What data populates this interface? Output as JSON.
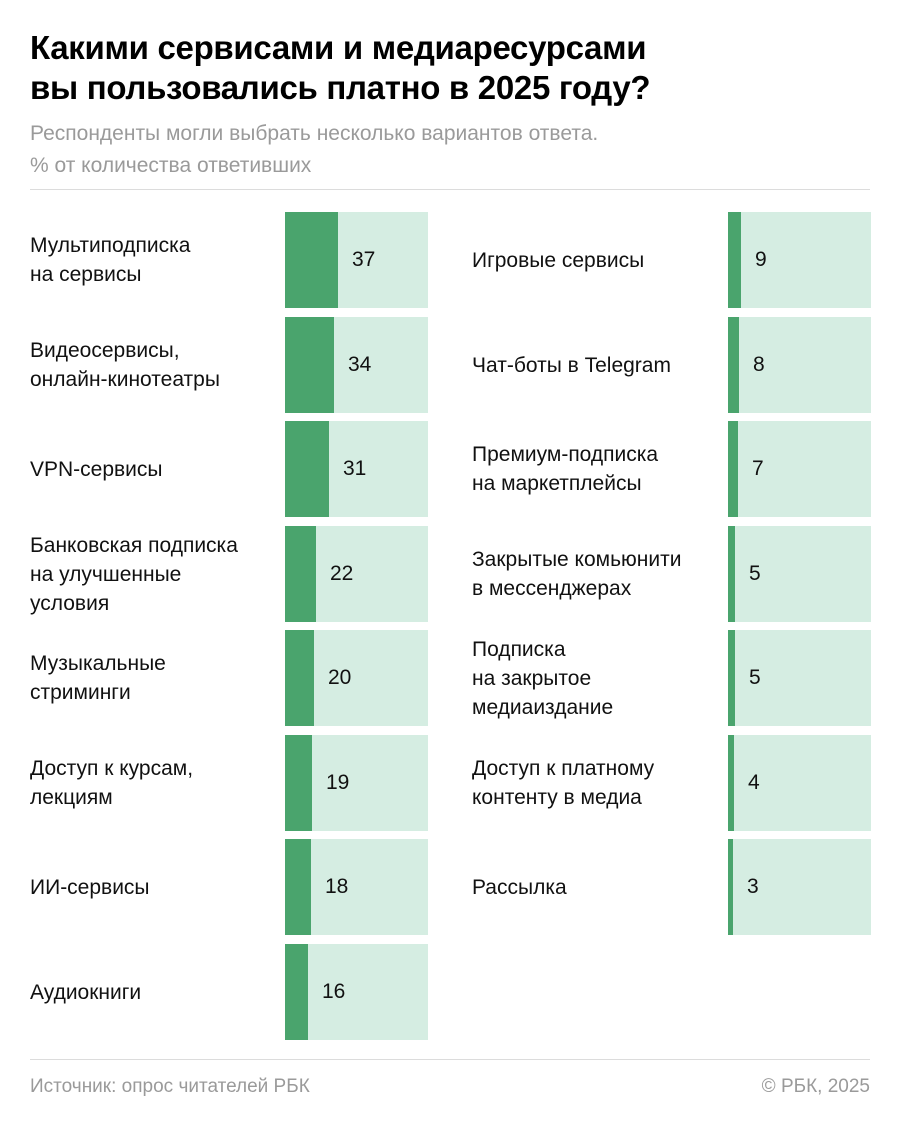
{
  "header": {
    "title": "Какими сервисами и медиаресурсами\nвы пользовались платно в 2025 году?",
    "subtitle": "Респонденты могли выбрать несколько вариантов ответа.\n% от количества ответивших"
  },
  "footer": {
    "source": "Источник: опрос читателей РБК",
    "copyright": "© РБК, 2025"
  },
  "colors": {
    "bar_fill": "#4aa46d",
    "bar_background": "#d5ede2",
    "muted_text": "#9a9a9a"
  },
  "chart_data": {
    "type": "bar",
    "orientation": "horizontal",
    "title": "Какими сервисами и медиаресурсами вы пользовались платно в 2025 году?",
    "subtitle": "Респонденты могли выбрать несколько вариантов ответа. % от количества ответивших",
    "unit": "%",
    "grid": false,
    "legend": "none",
    "columns": [
      {
        "categories": [
          "Мультиподписка\nна сервисы",
          "Видеосервисы,\nонлайн-кинотеатры",
          "VPN-сервисы",
          "Банковская подписка\nна улучшенные\nусловия",
          "Музыкальные\nстриминги",
          "Доступ к курсам,\nлекциям",
          "ИИ-сервисы",
          "Аудиокниги"
        ],
        "values": [
          37,
          34,
          31,
          22,
          20,
          19,
          18,
          16
        ]
      },
      {
        "categories": [
          "Игровые сервисы",
          "Чат-боты в Telegram",
          "Премиум-подписка\nна маркетплейсы",
          "Закрытые комьюнити\nв мессенджерах",
          "Подписка\nна закрытое\nмедиаиздание",
          "Доступ к платному\nконтенту в медиа",
          "Рассылка"
        ],
        "values": [
          9,
          8,
          7,
          5,
          5,
          4,
          3
        ]
      }
    ]
  }
}
